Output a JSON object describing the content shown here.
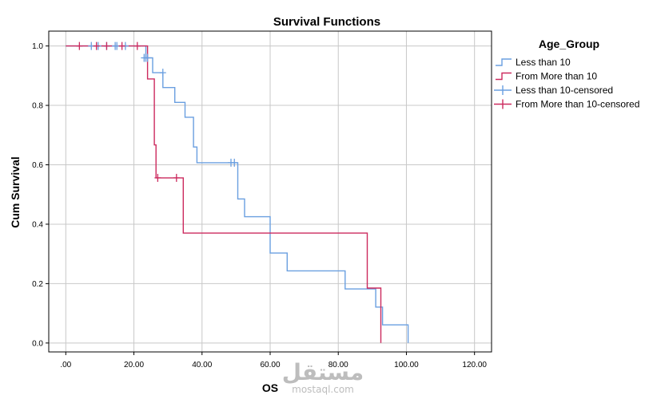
{
  "chart_data": {
    "type": "line",
    "title": "Survival Functions",
    "xlabel": "OS",
    "ylabel": "Cum Survival",
    "xlim": [
      -5,
      125
    ],
    "ylim": [
      -0.03,
      1.05
    ],
    "x_ticks": [
      0,
      20,
      40,
      60,
      80,
      100,
      120
    ],
    "x_tick_labels": [
      ".00",
      "20.00",
      "40.00",
      "60.00",
      "80.00",
      "100.00",
      "120.00"
    ],
    "y_ticks": [
      0,
      0.2,
      0.4,
      0.6,
      0.8,
      1.0
    ],
    "y_tick_labels": [
      "0.0",
      "0.2",
      "0.4",
      "0.6",
      "0.8",
      "1.0"
    ],
    "grid": true,
    "legend_title": "Age_Group",
    "legend_placement": "right",
    "series": [
      {
        "name": "Less than 10",
        "kind": "step",
        "color": "#6a9fe0",
        "points": [
          [
            0,
            1.0
          ],
          [
            23.5,
            1.0
          ],
          [
            23.5,
            0.96
          ],
          [
            25.5,
            0.96
          ],
          [
            25.5,
            0.91
          ],
          [
            28.5,
            0.91
          ],
          [
            28.5,
            0.86
          ],
          [
            32,
            0.86
          ],
          [
            32,
            0.81
          ],
          [
            35,
            0.81
          ],
          [
            35,
            0.76
          ],
          [
            37.5,
            0.76
          ],
          [
            37.5,
            0.66
          ],
          [
            38.5,
            0.66
          ],
          [
            38.5,
            0.607
          ],
          [
            50.5,
            0.607
          ],
          [
            50.5,
            0.485
          ],
          [
            52.5,
            0.485
          ],
          [
            52.5,
            0.425
          ],
          [
            60,
            0.425
          ],
          [
            60,
            0.303
          ],
          [
            65,
            0.303
          ],
          [
            65,
            0.243
          ],
          [
            82,
            0.243
          ],
          [
            82,
            0.182
          ],
          [
            91,
            0.182
          ],
          [
            91,
            0.121
          ],
          [
            93,
            0.121
          ],
          [
            93,
            0.061
          ],
          [
            100.5,
            0.061
          ],
          [
            100.5,
            0.0
          ]
        ]
      },
      {
        "name": "From More than 10",
        "kind": "step",
        "color": "#cc2a5e",
        "points": [
          [
            0,
            1.0
          ],
          [
            24,
            1.0
          ],
          [
            24,
            0.889
          ],
          [
            26,
            0.889
          ],
          [
            26,
            0.667
          ],
          [
            26.5,
            0.667
          ],
          [
            26.5,
            0.556
          ],
          [
            34.5,
            0.556
          ],
          [
            34.5,
            0.37
          ],
          [
            88.5,
            0.37
          ],
          [
            88.5,
            0.185
          ],
          [
            92.5,
            0.185
          ],
          [
            92.5,
            0.0
          ]
        ]
      },
      {
        "name": "Less than 10-censored",
        "kind": "censor",
        "color": "#6a9fe0",
        "points": [
          [
            7.5,
            1.0
          ],
          [
            9.5,
            1.0
          ],
          [
            12,
            1.0
          ],
          [
            14.5,
            1.0
          ],
          [
            15,
            1.0
          ],
          [
            17.5,
            1.0
          ],
          [
            23,
            0.96
          ],
          [
            23.5,
            0.96
          ],
          [
            24,
            0.96
          ],
          [
            28.5,
            0.91
          ],
          [
            48.5,
            0.607
          ],
          [
            49.5,
            0.607
          ]
        ]
      },
      {
        "name": "From More than 10-censored",
        "kind": "censor",
        "color": "#cc2a5e",
        "points": [
          [
            4,
            1.0
          ],
          [
            9,
            1.0
          ],
          [
            12,
            1.0
          ],
          [
            16.5,
            1.0
          ],
          [
            21,
            1.0
          ],
          [
            27,
            0.556
          ],
          [
            32.5,
            0.556
          ]
        ]
      }
    ]
  },
  "watermark": {
    "arabic": "مستقل",
    "latin": "mostaql.com"
  }
}
